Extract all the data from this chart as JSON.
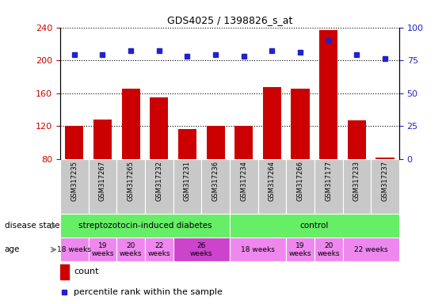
{
  "title": "GDS4025 / 1398826_s_at",
  "samples": [
    "GSM317235",
    "GSM317267",
    "GSM317265",
    "GSM317232",
    "GSM317231",
    "GSM317236",
    "GSM317234",
    "GSM317264",
    "GSM317266",
    "GSM317177",
    "GSM317233",
    "GSM317237"
  ],
  "counts": [
    120,
    128,
    165,
    155,
    116,
    120,
    120,
    167,
    165,
    237,
    127,
    82
  ],
  "percentiles": [
    79,
    79,
    82,
    82,
    78,
    79,
    78,
    82,
    81,
    90,
    79,
    76
  ],
  "ylim_left": [
    80,
    240
  ],
  "ylim_right": [
    0,
    100
  ],
  "yticks_left": [
    80,
    120,
    160,
    200,
    240
  ],
  "yticks_right": [
    0,
    25,
    50,
    75,
    100
  ],
  "bar_color": "#cc0000",
  "dot_color": "#2222cc",
  "axis_color_left": "#cc0000",
  "axis_color_right": "#2222cc",
  "sample_bg_color": "#c8c8c8",
  "disease_color": "#66ee66",
  "age_color_normal": "#ee88ee",
  "age_color_26weeks": "#cc44cc",
  "legend_count_color": "#cc0000",
  "legend_pct_color": "#2222cc",
  "age_groups": [
    {
      "label": "18 weeks",
      "start": 0,
      "end": 1
    },
    {
      "label": "19\nweeks",
      "start": 1,
      "end": 2
    },
    {
      "label": "20\nweeks",
      "start": 2,
      "end": 3
    },
    {
      "label": "22\nweeks",
      "start": 3,
      "end": 4
    },
    {
      "label": "26\nweeks",
      "start": 4,
      "end": 6,
      "dark": true
    },
    {
      "label": "18 weeks",
      "start": 6,
      "end": 8
    },
    {
      "label": "19\nweeks",
      "start": 8,
      "end": 9
    },
    {
      "label": "20\nweeks",
      "start": 9,
      "end": 10
    },
    {
      "label": "22 weeks",
      "start": 10,
      "end": 12
    }
  ]
}
